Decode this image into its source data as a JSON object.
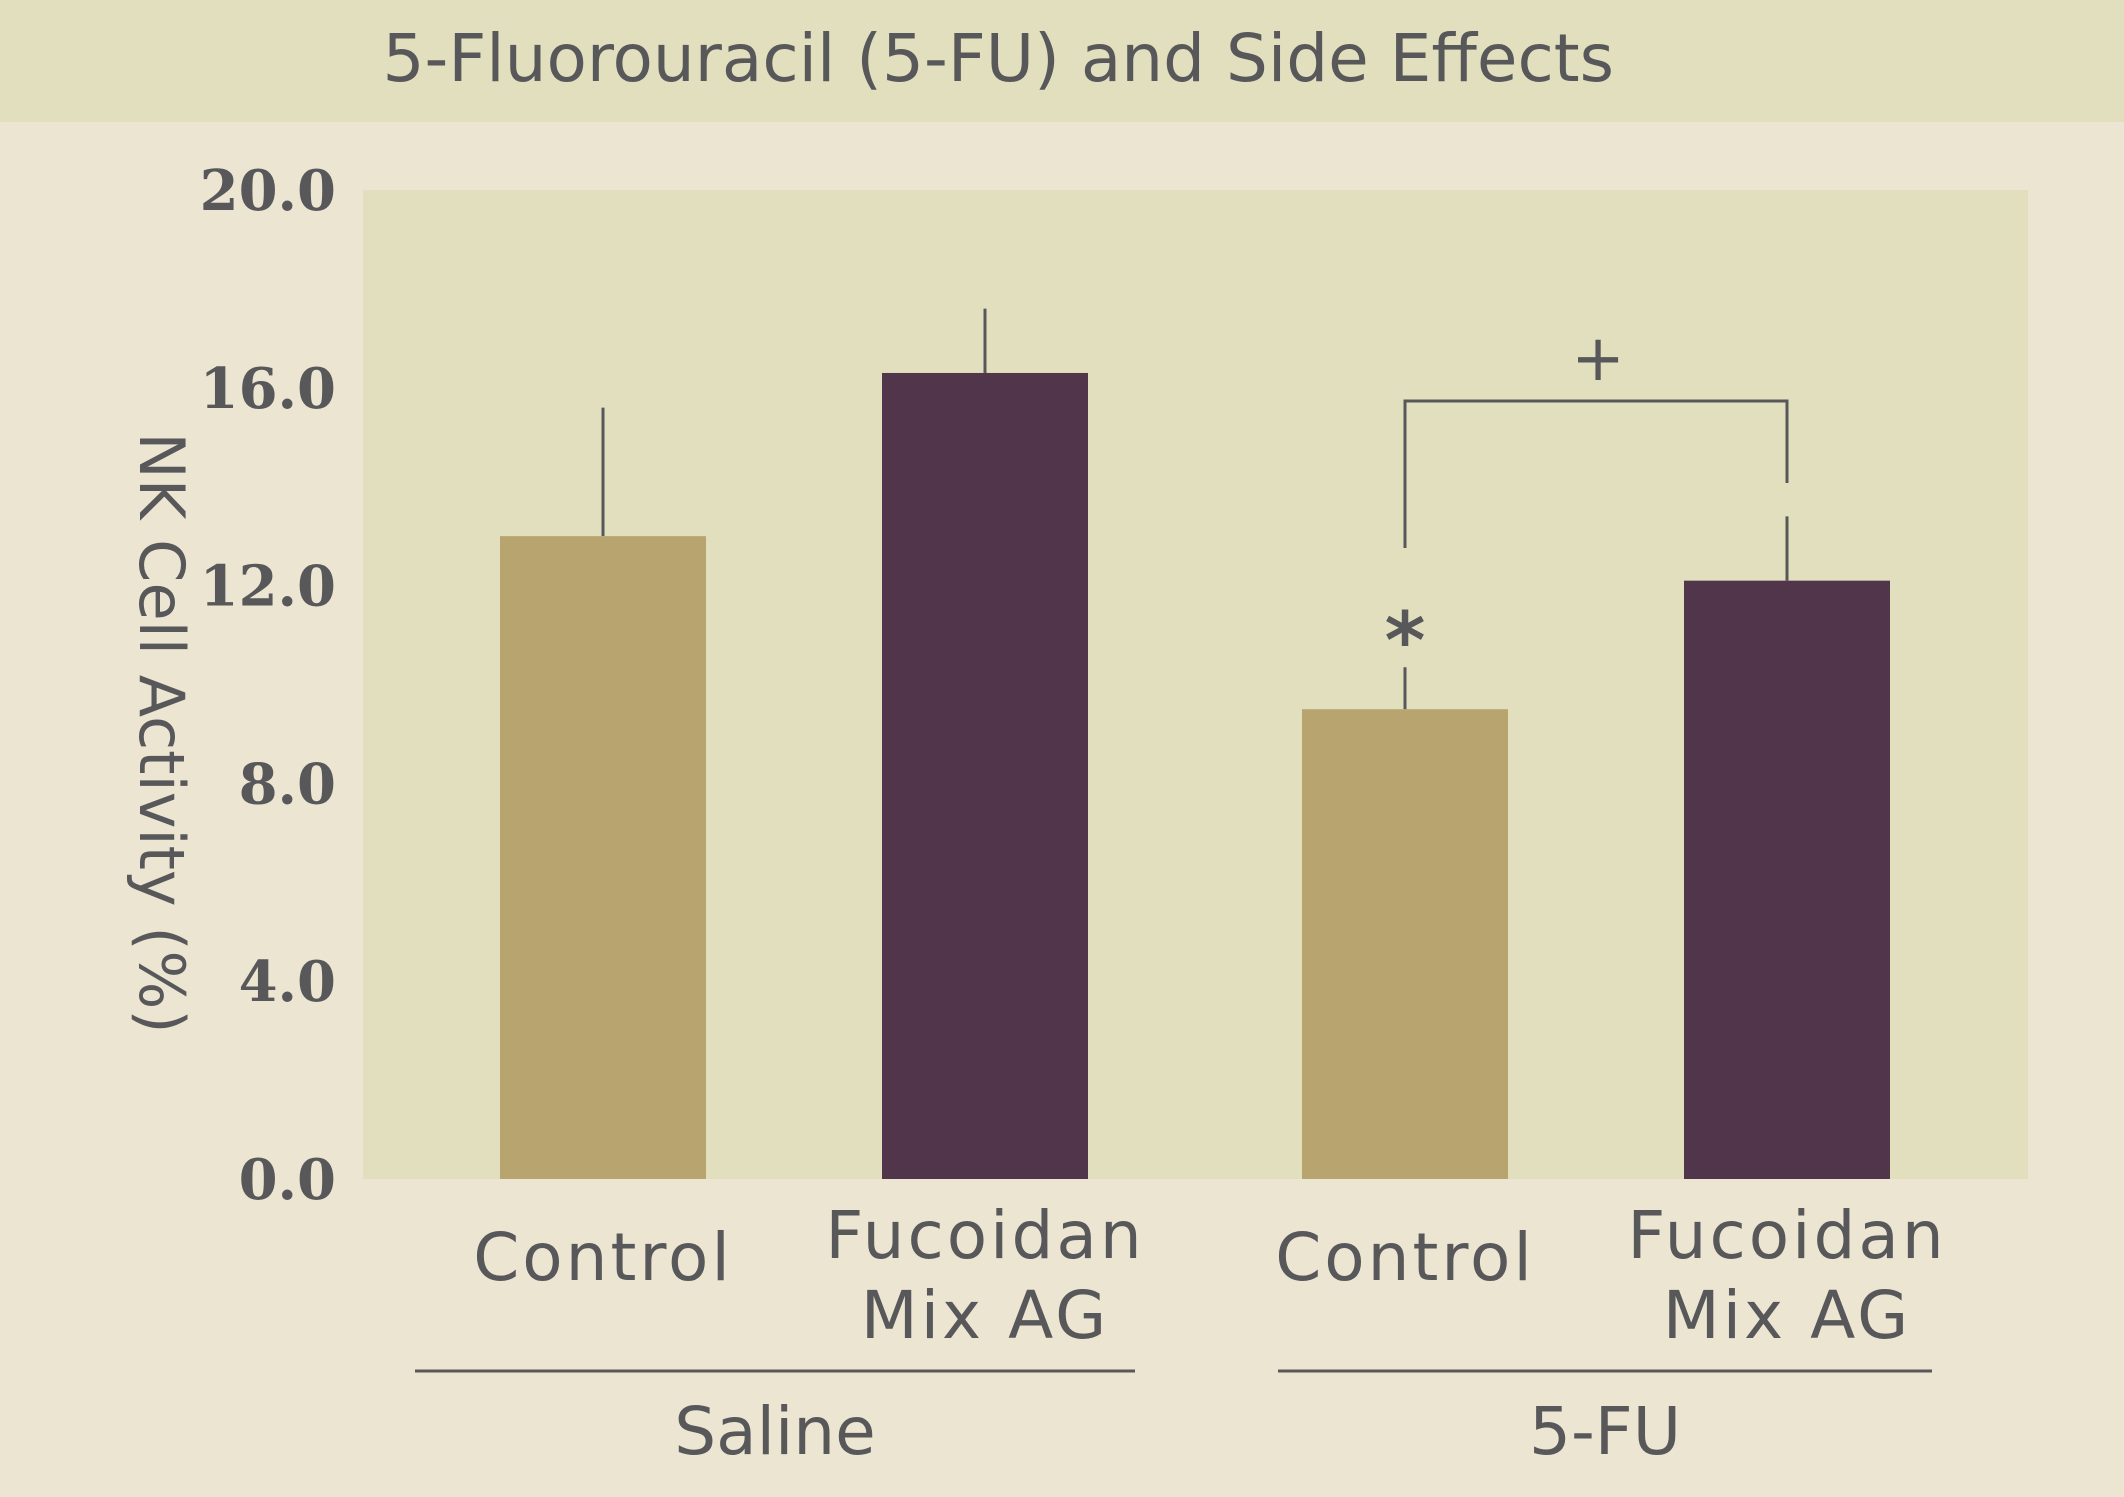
{
  "chart_data": {
    "type": "bar",
    "title": "5-Fluorouracil (5-FU) and Side Effects",
    "ylabel": "NK Cell Activity (%)",
    "xlabel": "",
    "ylim": [
      0,
      20
    ],
    "yticks": [
      "0.0",
      "4.0",
      "8.0",
      "12.0",
      "16.0",
      "20.0"
    ],
    "ytick_values": [
      0,
      4,
      8,
      12,
      16,
      20
    ],
    "grid": false,
    "categories": [
      {
        "lines": [
          "Control"
        ],
        "group": "Saline"
      },
      {
        "lines": [
          "Fucoidan",
          "Mix AG"
        ],
        "group": "Saline"
      },
      {
        "lines": [
          "Control"
        ],
        "group": "5-FU"
      },
      {
        "lines": [
          "Fucoidan",
          "Mix AG"
        ],
        "group": "5-FU"
      }
    ],
    "groups": [
      "Saline",
      "5-FU"
    ],
    "values": [
      13.0,
      16.3,
      9.5,
      12.1
    ],
    "error_upper": [
      15.6,
      17.6,
      10.4,
      13.4
    ],
    "bar_colors": [
      "#b7a46e",
      "#51364b",
      "#b7a46e",
      "#51364b"
    ],
    "annotations": {
      "significance_marker": "*",
      "bracket_marker": "+"
    }
  },
  "colors": {
    "background": "#ebe5d2",
    "plot_background": "#e1dfbe",
    "text": "#58585a",
    "control_bar": "#b7a46e",
    "fucoidan_bar": "#51364b"
  }
}
